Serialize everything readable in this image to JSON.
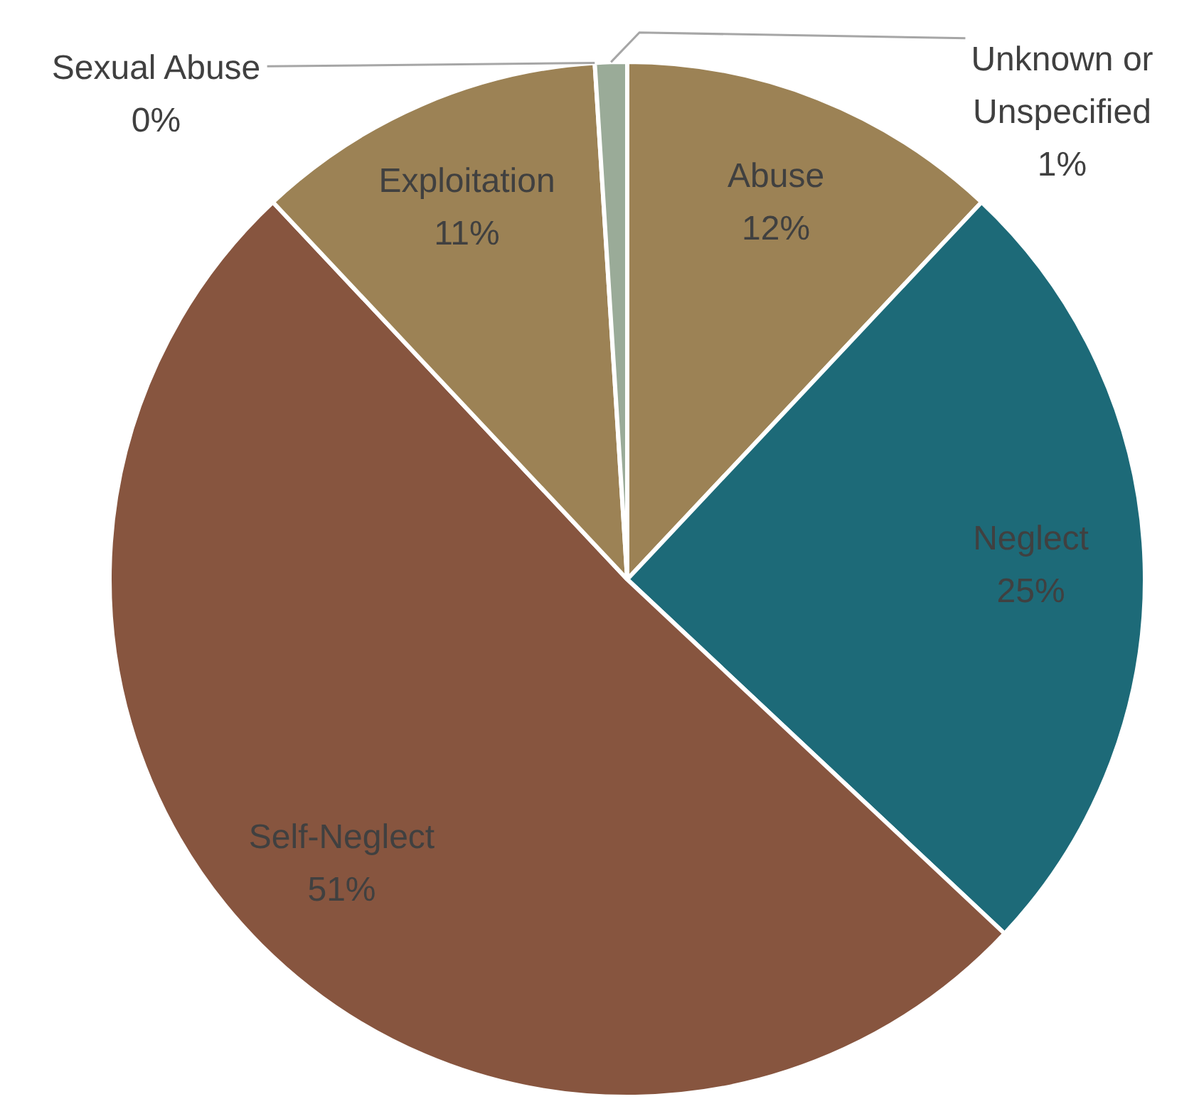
{
  "chart_data": {
    "type": "pie",
    "categories": [
      "Abuse",
      "Neglect",
      "Self-Neglect",
      "Exploitation",
      "Sexual Abuse",
      "Unknown or Unspecified"
    ],
    "values": [
      12,
      25,
      51,
      11,
      0,
      1
    ],
    "value_labels": [
      "12%",
      "25%",
      "51%",
      "11%",
      "0%",
      "1%"
    ],
    "colors": [
      "#9c8255",
      "#1d6a78",
      "#87553f",
      "#9c8255",
      "#6b8e8e",
      "#9aab98"
    ],
    "legend": false
  }
}
